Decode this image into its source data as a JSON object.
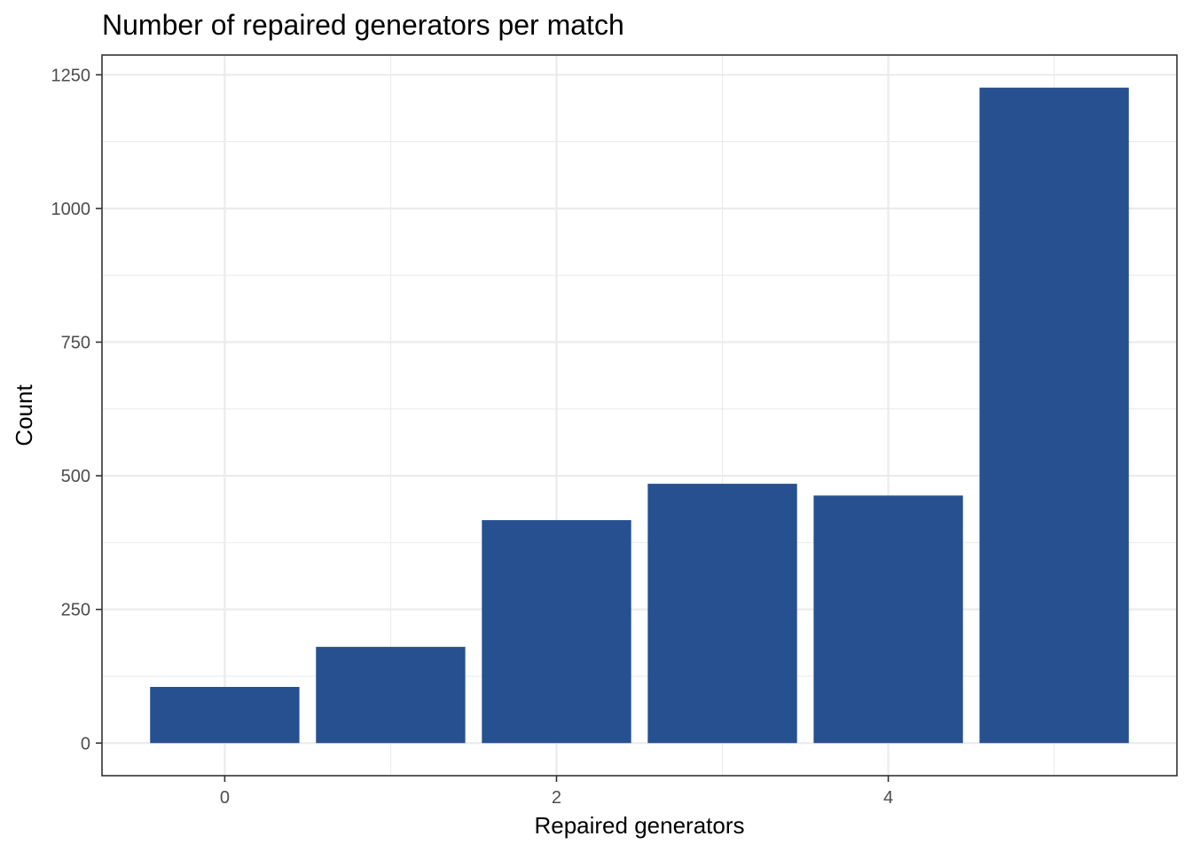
{
  "chart_data": {
    "type": "bar",
    "title": "Number of repaired generators per match",
    "xlabel": "Repaired generators",
    "ylabel": "Count",
    "categories": [
      0,
      1,
      2,
      3,
      4,
      5
    ],
    "values": [
      105,
      180,
      417,
      485,
      463,
      1226
    ],
    "x_ticks": [
      0,
      2,
      4
    ],
    "y_ticks": [
      0,
      250,
      500,
      750,
      1000,
      1250
    ],
    "xlim": [
      -0.74,
      5.74
    ],
    "ylim": [
      -61,
      1287
    ],
    "bar_color": "#26508f",
    "grid": true,
    "legend": "none"
  }
}
